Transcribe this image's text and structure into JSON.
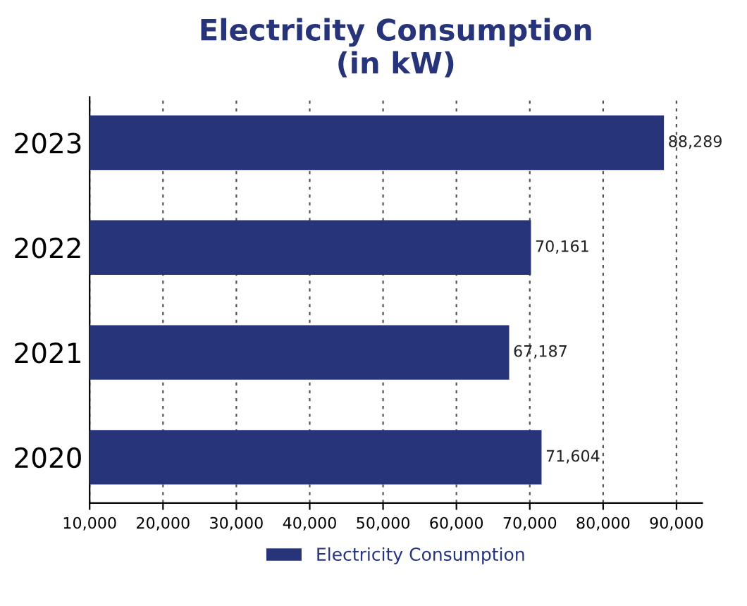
{
  "chart_data": {
    "type": "bar",
    "orientation": "horizontal",
    "title": "Electricity Consumption\n(in kW)",
    "categories": [
      "2023",
      "2022",
      "2021",
      "2020"
    ],
    "series": [
      {
        "name": "Electricity Consumption",
        "color": "#283479",
        "values": [
          88289,
          70161,
          67187,
          71604
        ],
        "value_labels": [
          "88,289",
          "70,161",
          "67,187",
          "71,604"
        ]
      }
    ],
    "xlim": [
      10000,
      93500
    ],
    "xticks": [
      {
        "value": 10000,
        "label": "10,000"
      },
      {
        "value": 20000,
        "label": "20,000"
      },
      {
        "value": 30000,
        "label": "30,000"
      },
      {
        "value": 40000,
        "label": "40,000"
      },
      {
        "value": 50000,
        "label": "50,000"
      },
      {
        "value": 60000,
        "label": "60,000"
      },
      {
        "value": 70000,
        "label": "70,000"
      },
      {
        "value": 80000,
        "label": "80,000"
      },
      {
        "value": 90000,
        "label": "90,000"
      }
    ],
    "grid": "x",
    "legend": "bottom"
  }
}
